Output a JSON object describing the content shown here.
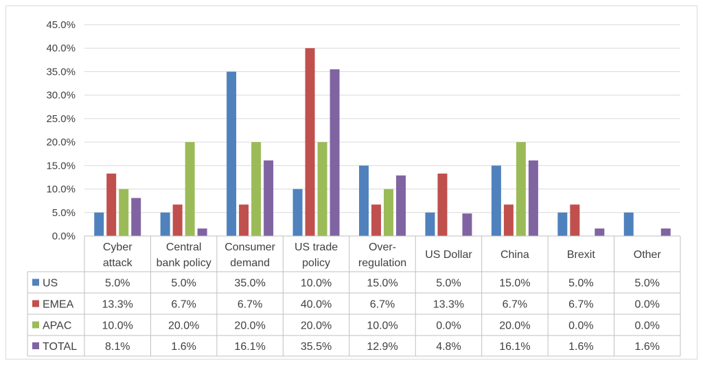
{
  "chart_data": {
    "type": "bar",
    "title": "",
    "xlabel": "",
    "ylabel": "",
    "ylim": [
      0,
      45
    ],
    "ytick_step": 5,
    "ytick_format": "percent_1dp",
    "grid": true,
    "legend_placement": "data table rows",
    "categories": [
      [
        "Cyber",
        "attack"
      ],
      [
        "Central",
        "bank policy"
      ],
      [
        "Consumer",
        "demand"
      ],
      [
        "US trade",
        "policy"
      ],
      [
        "Over-",
        "regulation"
      ],
      [
        "US Dollar"
      ],
      [
        "China"
      ],
      [
        "Brexit"
      ],
      [
        "Other"
      ]
    ],
    "series": [
      {
        "name": "US",
        "color": "#4f81bd",
        "values": [
          5.0,
          5.0,
          35.0,
          10.0,
          15.0,
          5.0,
          15.0,
          5.0,
          5.0
        ],
        "labels": [
          "5.0%",
          "5.0%",
          "35.0%",
          "10.0%",
          "15.0%",
          "5.0%",
          "15.0%",
          "5.0%",
          "5.0%"
        ]
      },
      {
        "name": "EMEA",
        "color": "#c0504d",
        "values": [
          13.3,
          6.7,
          6.7,
          40.0,
          6.7,
          13.3,
          6.7,
          6.7,
          0.0
        ],
        "labels": [
          "13.3%",
          "6.7%",
          "6.7%",
          "40.0%",
          "6.7%",
          "13.3%",
          "6.7%",
          "6.7%",
          "0.0%"
        ]
      },
      {
        "name": "APAC",
        "color": "#9bbb59",
        "values": [
          10.0,
          20.0,
          20.0,
          20.0,
          10.0,
          0.0,
          20.0,
          0.0,
          0.0
        ],
        "labels": [
          "10.0%",
          "20.0%",
          "20.0%",
          "20.0%",
          "10.0%",
          "0.0%",
          "20.0%",
          "0.0%",
          "0.0%"
        ]
      },
      {
        "name": "TOTAL",
        "color": "#8064a2",
        "values": [
          8.1,
          1.6,
          16.1,
          35.5,
          12.9,
          4.8,
          16.1,
          1.6,
          1.6
        ],
        "labels": [
          "8.1%",
          "1.6%",
          "16.1%",
          "35.5%",
          "12.9%",
          "4.8%",
          "16.1%",
          "1.6%",
          "1.6%"
        ]
      }
    ]
  }
}
